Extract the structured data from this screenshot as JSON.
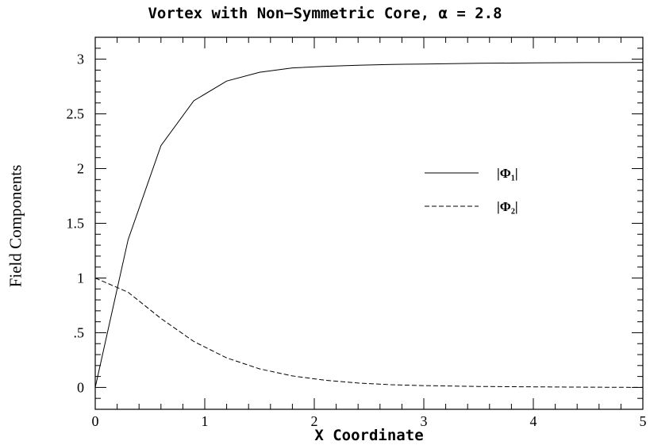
{
  "chart_data": {
    "type": "line",
    "title": "Vortex with Non−Symmetric Core, α = 2.8",
    "xlabel": "X Coordinate",
    "ylabel": "Field Components",
    "xlim": [
      0,
      5
    ],
    "ylim": [
      -0.2,
      3.2
    ],
    "x_ticks": [
      {
        "value": 0,
        "label": "0"
      },
      {
        "value": 1,
        "label": "1"
      },
      {
        "value": 2,
        "label": "2"
      },
      {
        "value": 3,
        "label": "3"
      },
      {
        "value": 4,
        "label": "4"
      },
      {
        "value": 5,
        "label": "5"
      }
    ],
    "y_ticks": [
      {
        "value": 0,
        "label": "0"
      },
      {
        "value": 0.5,
        "label": ".5"
      },
      {
        "value": 1,
        "label": "1"
      },
      {
        "value": 1.5,
        "label": "1.5"
      },
      {
        "value": 2,
        "label": "2"
      },
      {
        "value": 2.5,
        "label": "2.5"
      },
      {
        "value": 3,
        "label": "3"
      }
    ],
    "legend_position": "right",
    "series": [
      {
        "name": "|Φ₁|",
        "style": "solid",
        "x": [
          0,
          0.3,
          0.6,
          0.9,
          1.2,
          1.5,
          1.8,
          2.1,
          2.4,
          2.7,
          3.0,
          3.5,
          4.0,
          4.5,
          5.0
        ],
        "y": [
          0,
          1.35,
          2.21,
          2.62,
          2.8,
          2.88,
          2.92,
          2.935,
          2.945,
          2.952,
          2.956,
          2.962,
          2.966,
          2.969,
          2.97
        ]
      },
      {
        "name": "|Φ₂|",
        "style": "dashed",
        "x": [
          0,
          0.3,
          0.6,
          0.9,
          1.2,
          1.5,
          1.8,
          2.1,
          2.4,
          2.7,
          3.0,
          3.5,
          4.0,
          4.5,
          5.0
        ],
        "y": [
          1.0,
          0.87,
          0.63,
          0.42,
          0.27,
          0.17,
          0.105,
          0.065,
          0.04,
          0.025,
          0.017,
          0.009,
          0.005,
          0.002,
          0.0
        ]
      }
    ]
  }
}
